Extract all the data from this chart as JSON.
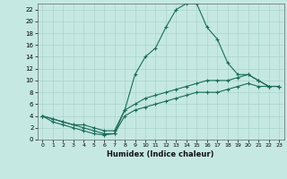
{
  "title": "",
  "xlabel": "Humidex (Indice chaleur)",
  "xlim": [
    -0.5,
    23.5
  ],
  "ylim": [
    0,
    23
  ],
  "yticks": [
    0,
    2,
    4,
    6,
    8,
    10,
    12,
    14,
    16,
    18,
    20,
    22
  ],
  "xticks": [
    0,
    1,
    2,
    3,
    4,
    5,
    6,
    7,
    8,
    9,
    10,
    11,
    12,
    13,
    14,
    15,
    16,
    17,
    18,
    19,
    20,
    21,
    22,
    23
  ],
  "background_color": "#c5e8e2",
  "grid_color": "#aad4cc",
  "line_color": "#1a6b5a",
  "lines": [
    {
      "x": [
        0,
        1,
        2,
        3,
        4,
        5,
        6,
        7,
        8,
        9,
        10,
        11,
        12,
        13,
        14,
        15,
        16,
        17,
        18,
        19,
        20,
        21,
        22,
        23
      ],
      "y": [
        4,
        3,
        2.5,
        2,
        1.5,
        1,
        0.8,
        1,
        5,
        11,
        14,
        15.5,
        19,
        22,
        23,
        23,
        19,
        17,
        13,
        11,
        11,
        10,
        9,
        9
      ]
    },
    {
      "x": [
        0,
        1,
        2,
        3,
        4,
        5,
        6,
        7,
        8,
        9,
        10,
        11,
        12,
        13,
        14,
        15,
        16,
        17,
        18,
        19,
        20,
        21,
        22,
        23
      ],
      "y": [
        4,
        3.5,
        3,
        2.5,
        2.5,
        2,
        1.5,
        1.5,
        5,
        6,
        7,
        7.5,
        8,
        8.5,
        9,
        9.5,
        10,
        10,
        10,
        10.5,
        11,
        10,
        9,
        9
      ]
    },
    {
      "x": [
        0,
        1,
        2,
        3,
        4,
        5,
        6,
        7,
        8,
        9,
        10,
        11,
        12,
        13,
        14,
        15,
        16,
        17,
        18,
        19,
        20,
        21,
        22,
        23
      ],
      "y": [
        4,
        3.5,
        3,
        2.5,
        2,
        1.5,
        1,
        1,
        4,
        5,
        5.5,
        6,
        6.5,
        7,
        7.5,
        8,
        8,
        8,
        8.5,
        9,
        9.5,
        9,
        9,
        9
      ]
    }
  ]
}
